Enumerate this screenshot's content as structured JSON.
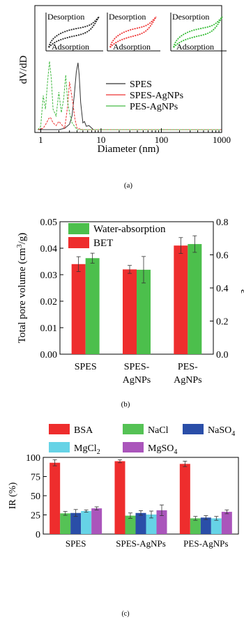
{
  "chart_data": [
    {
      "type": "line",
      "panel_label": "(a)",
      "xlabel": "Diameter (nm)",
      "ylabel": "dV/dD",
      "xscale": "log",
      "xlim": [
        0.8,
        1000
      ],
      "xticks": [
        1,
        10,
        100,
        1000
      ],
      "xtick_labels": [
        "1",
        "10",
        "100",
        "1000"
      ],
      "legend_position": "center-right",
      "series": [
        {
          "name": "SPES",
          "color": "#333333",
          "x": [
            0.9,
            2.0,
            2.5,
            3.0,
            3.3,
            3.6,
            3.9,
            4.15,
            4.35,
            4.6,
            5.0,
            5.3,
            5.7,
            6.3,
            7.5,
            10,
            1000
          ],
          "y": [
            0.0,
            0.0,
            0.02,
            0.08,
            0.2,
            0.5,
            0.85,
            0.98,
            0.8,
            0.4,
            0.1,
            0.12,
            0.05,
            0.06,
            0.0,
            0.0,
            0.0
          ]
        },
        {
          "name": "SPES-AgNPs",
          "color": "#ee3333",
          "x": [
            0.9,
            1.1,
            1.25,
            1.35,
            1.45,
            1.6,
            1.8,
            2.0,
            2.2,
            2.5,
            2.8,
            3.0,
            3.4,
            3.7,
            4.0,
            5,
            1000
          ],
          "y": [
            0.0,
            0.02,
            0.1,
            0.16,
            0.18,
            0.1,
            0.06,
            0.12,
            0.08,
            0.02,
            0.35,
            0.7,
            0.4,
            0.15,
            0.02,
            0.0,
            0.0
          ]
        },
        {
          "name": "PES-AgNPs",
          "color": "#44bb44",
          "x": [
            0.9,
            1.0,
            1.1,
            1.2,
            1.3,
            1.4,
            1.5,
            1.6,
            1.8,
            2.0,
            2.2,
            2.4,
            2.6,
            2.8,
            3.0,
            3.3,
            4,
            1000
          ],
          "y": [
            0.0,
            0.05,
            0.5,
            0.3,
            0.7,
            1.0,
            0.75,
            0.3,
            0.2,
            0.55,
            0.25,
            0.45,
            0.8,
            0.4,
            0.25,
            0.1,
            0.0,
            0.0
          ]
        }
      ],
      "insets": [
        {
          "color": "#222222",
          "top_label": "Desorption",
          "bottom_label": "Adsorption"
        },
        {
          "color": "#ee3333",
          "top_label": "Desorption",
          "bottom_label": "Adsorption"
        },
        {
          "color": "#33bb33",
          "top_label": "Desorption",
          "bottom_label": "Adsorption"
        }
      ]
    },
    {
      "type": "bar",
      "panel_label": "(b)",
      "ylabel": "Total pore volume (cm³/g)",
      "ylabel_parts": [
        "Total pore volume (cm",
        "3",
        "/g)"
      ],
      "y2label": "ε",
      "ylim": [
        0,
        0.05
      ],
      "y2lim": [
        0,
        0.8
      ],
      "yticks": [
        "0.00",
        "0.01",
        "0.02",
        "0.03",
        "0.04",
        "0.05"
      ],
      "y2ticks": [
        "0.0",
        "0.2",
        "0.4",
        "0.6",
        "0.8"
      ],
      "categories": [
        [
          "SPES"
        ],
        [
          "SPES-",
          "AgNPs"
        ],
        [
          "PES-",
          "AgNPs"
        ]
      ],
      "legend_position": "top-left",
      "series": [
        {
          "name": "BET",
          "color": "#ee2d2d",
          "axis": "left",
          "values": [
            0.034,
            0.032,
            0.041
          ],
          "errors": [
            0.0028,
            0.0015,
            0.003
          ]
        },
        {
          "name": "Water-absorption",
          "color": "#4cbf4c",
          "axis": "right",
          "values": [
            0.58,
            0.51,
            0.665
          ],
          "errors": [
            0.03,
            0.08,
            0.05
          ]
        }
      ]
    },
    {
      "type": "bar",
      "panel_label": "(c)",
      "ylabel": "IR (%)",
      "ylim": [
        0,
        100
      ],
      "yticks": [
        "0",
        "25",
        "50",
        "75",
        "100"
      ],
      "categories": [
        "SPES",
        "SPES-AgNPs",
        "PES-AgNPs"
      ],
      "legend_position": "top",
      "series": [
        {
          "name": "BSA",
          "label_main": "BSA",
          "label_sub": "",
          "color": "#ee2d2d",
          "values": [
            93,
            95,
            91.5
          ],
          "errors": [
            4,
            2,
            3.5
          ]
        },
        {
          "name": "NaCl",
          "label_main": "NaCl",
          "label_sub": "",
          "color": "#55c255",
          "values": [
            27,
            24,
            20.5
          ],
          "errors": [
            2.5,
            3.5,
            2.5
          ]
        },
        {
          "name": "NaSO4",
          "label_main": "NaSO",
          "label_sub": "4",
          "color": "#2a4ea8",
          "values": [
            27.5,
            27.5,
            21.5
          ],
          "errors": [
            4.5,
            3,
            2.5
          ]
        },
        {
          "name": "MgCl2",
          "label_main": "MgCl",
          "label_sub": "2",
          "color": "#66d3e6",
          "values": [
            30,
            25.5,
            20.5
          ],
          "errors": [
            1.5,
            4.5,
            2.5
          ]
        },
        {
          "name": "MgSO4",
          "label_main": "MgSO",
          "label_sub": "4",
          "color": "#aa55bb",
          "values": [
            33.5,
            31,
            29
          ],
          "errors": [
            2,
            7,
            2.5
          ]
        }
      ]
    }
  ]
}
